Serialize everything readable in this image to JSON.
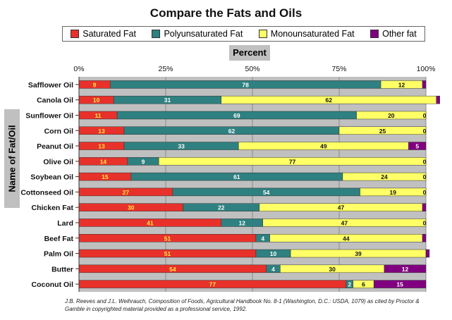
{
  "chart_data": {
    "type": "bar",
    "orientation": "horizontal",
    "stacked": true,
    "title": "Compare the Fats and Oils",
    "xlabel": "Percent",
    "ylabel": "Name of Fat/Oil",
    "xlim": [
      0,
      100
    ],
    "xticks": [
      "0%",
      "25%",
      "50%",
      "75%",
      "100%"
    ],
    "grid": true,
    "legend_position": "top",
    "categories": [
      "Safflower Oil",
      "Canola Oil",
      "Sunflower Oil",
      "Corn Oil",
      "Peanut Oil",
      "Olive Oil",
      "Soybean Oil",
      "Cottonseed Oil",
      "Chicken Fat",
      "Lard",
      "Beef Fat",
      "Palm Oil",
      "Butter",
      "Coconut Oil"
    ],
    "series": [
      {
        "name": "Saturated Fat",
        "color": "#e8312a",
        "values": [
          9,
          10,
          11,
          13,
          13,
          14,
          15,
          27,
          30,
          41,
          51,
          51,
          54,
          77
        ]
      },
      {
        "name": "Polyunsaturated Fat",
        "color": "#2f8080",
        "values": [
          78,
          31,
          69,
          62,
          33,
          9,
          61,
          54,
          22,
          12,
          4,
          10,
          4,
          2
        ]
      },
      {
        "name": "Monounsaturated Fat",
        "color": "#ffff66",
        "values": [
          12,
          62,
          20,
          25,
          49,
          77,
          24,
          19,
          47,
          47,
          44,
          39,
          30,
          6
        ]
      },
      {
        "name": "Other fat",
        "color": "#800080",
        "values": [
          1,
          1,
          0,
          0,
          5,
          0,
          0,
          0,
          1,
          0,
          1,
          1,
          12,
          15
        ]
      }
    ],
    "value_labels": [
      [
        "9",
        "78",
        "12",
        ""
      ],
      [
        "10",
        "31",
        "62",
        ""
      ],
      [
        "11",
        "69",
        "20",
        "0"
      ],
      [
        "13",
        "62",
        "25",
        "0"
      ],
      [
        "13",
        "33",
        "49",
        "5"
      ],
      [
        "14",
        "9",
        "77",
        "0"
      ],
      [
        "15",
        "61",
        "24",
        "0"
      ],
      [
        "27",
        "54",
        "19",
        "0"
      ],
      [
        "30",
        "22",
        "47",
        ""
      ],
      [
        "41",
        "12",
        "47",
        "0"
      ],
      [
        "51",
        "4",
        "44",
        ""
      ],
      [
        "51",
        "10",
        "39",
        ""
      ],
      [
        "54",
        "4",
        "30",
        "12"
      ],
      [
        "77",
        "2",
        "6",
        "15"
      ]
    ]
  },
  "source": "J.B. Reeves and J.L. Weihrauch, Composition of Foods, Agricultural Handbook No. 8-1 (Washington, D.C.: USDA, 1079) as cited by Proctor & Gamble in copyrighted material provided as a professional service, 1992."
}
